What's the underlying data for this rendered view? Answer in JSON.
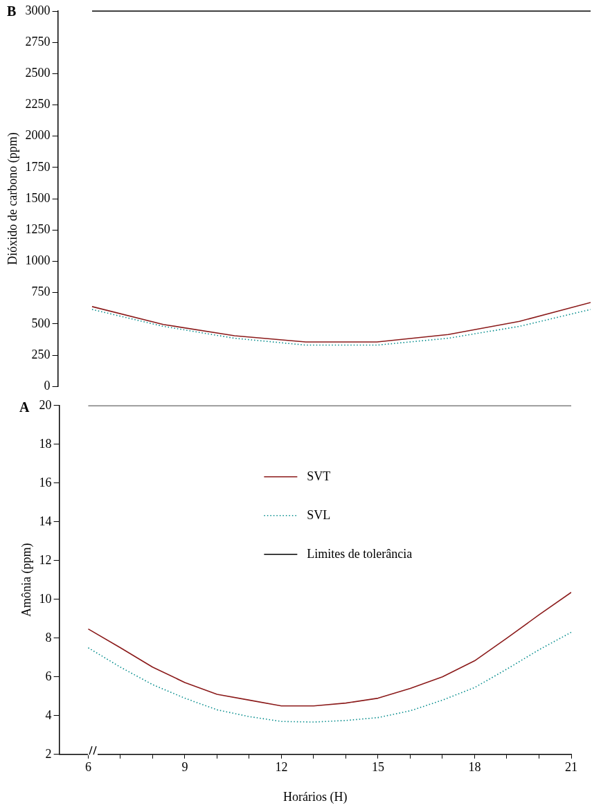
{
  "chart_data": [
    {
      "type": "line",
      "ylabel": "Dióxido de carbono (ppm)",
      "annotations": [
        "B"
      ],
      "ylim": [
        0,
        3000
      ],
      "yticks": [
        0,
        250,
        500,
        750,
        1000,
        1250,
        1500,
        1750,
        2000,
        2250,
        2500,
        2750,
        3000
      ],
      "tick_labels": "y",
      "grid": false,
      "legend": false,
      "marker": "none",
      "categories": [
        null,
        null,
        null,
        null,
        null,
        null,
        null,
        null
      ],
      "ref_lines": [
        {
          "axis": "y",
          "value": 3000,
          "color": "#000000"
        }
      ],
      "series": [
        {
          "color": "#8b1a1a",
          "values": [
            638,
            495,
            405,
            355,
            355,
            415,
            520,
            671
          ]
        },
        {
          "color": "#008b8b",
          "line_style": "dotted",
          "values": [
            615,
            480,
            385,
            330,
            330,
            385,
            480,
            615
          ]
        }
      ]
    },
    {
      "type": "line",
      "xlabel": "Horários (H)",
      "ylabel": "Amônia (ppm)",
      "annotations": [
        "A"
      ],
      "xlim": [
        5.1,
        21
      ],
      "ylim": [
        2,
        20
      ],
      "yticks": [
        2,
        4,
        6,
        8,
        10,
        12,
        14,
        16,
        18,
        20
      ],
      "xticks": [
        6,
        {
          "value": 7,
          "label": null
        },
        {
          "value": 8,
          "label": null
        },
        9,
        {
          "value": 10,
          "label": null
        },
        {
          "value": 11,
          "label": null
        },
        12,
        {
          "value": 13,
          "label": null
        },
        {
          "value": 14,
          "label": null
        },
        15,
        {
          "value": 16,
          "label": null
        },
        {
          "value": 17,
          "label": null
        },
        18,
        {
          "value": 19,
          "label": null
        },
        {
          "value": 20,
          "label": null
        },
        21
      ],
      "grid": false,
      "legend": "top",
      "marker": "none",
      "x": [
        6,
        7,
        8,
        9,
        10,
        11,
        12,
        13,
        14,
        15,
        16,
        17,
        18,
        19,
        20,
        21
      ],
      "series": [
        {
          "name": "SVT",
          "color": "#8b1a1a",
          "values": [
            8.47,
            7.5,
            6.5,
            5.71,
            5.1,
            4.8,
            4.5,
            4.5,
            4.65,
            4.9,
            5.4,
            6.0,
            6.83,
            8.0,
            9.2,
            10.36
          ]
        },
        {
          "name": "SVL",
          "color": "#008b8b",
          "line_style": "dotted",
          "values": [
            7.5,
            6.5,
            5.6,
            4.9,
            4.3,
            3.95,
            3.7,
            3.67,
            3.75,
            3.9,
            4.25,
            4.8,
            5.45,
            6.4,
            7.4,
            8.3
          ]
        },
        {
          "name": "Limites de tolerância",
          "color": "#000000",
          "x": [
            6,
            21
          ],
          "values": [
            20,
            20
          ]
        }
      ]
    }
  ]
}
